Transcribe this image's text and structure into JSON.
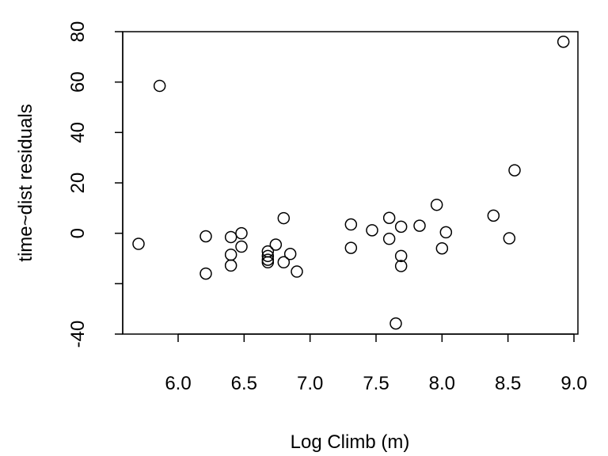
{
  "chart_data": {
    "type": "scatter",
    "title": "",
    "xlabel": "Log Climb (m)",
    "ylabel": "time~dist residuals",
    "xlim": [
      5.58,
      9.03
    ],
    "ylim": [
      -40,
      80
    ],
    "x_ticks": [
      "6.0",
      "6.5",
      "7.0",
      "7.5",
      "8.0",
      "8.5",
      "9.0"
    ],
    "y_ticks": [
      "-40",
      "0",
      "20",
      "40",
      "60",
      "80"
    ],
    "grid": false,
    "legend": "none",
    "series": [
      {
        "points": [
          {
            "x": 5.7,
            "y": -4.2
          },
          {
            "x": 5.86,
            "y": 58.5
          },
          {
            "x": 6.21,
            "y": -1.2
          },
          {
            "x": 6.21,
            "y": -16.0
          },
          {
            "x": 6.4,
            "y": -1.5
          },
          {
            "x": 6.4,
            "y": -8.5
          },
          {
            "x": 6.4,
            "y": -12.8
          },
          {
            "x": 6.48,
            "y": 0.0
          },
          {
            "x": 6.48,
            "y": -5.3
          },
          {
            "x": 6.68,
            "y": -7.2
          },
          {
            "x": 6.68,
            "y": -9.0
          },
          {
            "x": 6.68,
            "y": -10.5
          },
          {
            "x": 6.68,
            "y": -11.5
          },
          {
            "x": 6.74,
            "y": -4.5
          },
          {
            "x": 6.8,
            "y": 6.0
          },
          {
            "x": 6.8,
            "y": -11.5
          },
          {
            "x": 6.85,
            "y": -8.2
          },
          {
            "x": 6.9,
            "y": -15.2
          },
          {
            "x": 7.31,
            "y": 3.5
          },
          {
            "x": 7.31,
            "y": -5.8
          },
          {
            "x": 7.47,
            "y": 1.2
          },
          {
            "x": 7.6,
            "y": 6.1
          },
          {
            "x": 7.6,
            "y": -2.2
          },
          {
            "x": 7.65,
            "y": -35.8
          },
          {
            "x": 7.69,
            "y": 2.6
          },
          {
            "x": 7.69,
            "y": -9.0
          },
          {
            "x": 7.69,
            "y": -13.0
          },
          {
            "x": 7.83,
            "y": 3.0
          },
          {
            "x": 7.96,
            "y": 11.3
          },
          {
            "x": 8.0,
            "y": -6.0
          },
          {
            "x": 8.03,
            "y": 0.4
          },
          {
            "x": 8.39,
            "y": 7.0
          },
          {
            "x": 8.51,
            "y": -2.0
          },
          {
            "x": 8.55,
            "y": 25.0
          },
          {
            "x": 8.92,
            "y": 76.0
          }
        ]
      }
    ]
  }
}
